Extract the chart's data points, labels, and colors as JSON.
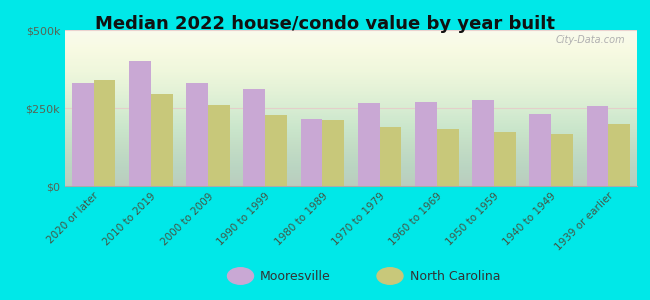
{
  "title": "Median 2022 house/condo value by year built",
  "categories": [
    "2020 or later",
    "2010 to 2019",
    "2000 to 2009",
    "1990 to 1999",
    "1980 to 1989",
    "1970 to 1979",
    "1960 to 1969",
    "1950 to 1959",
    "1940 to 1949",
    "1939 or earlier"
  ],
  "mooresville": [
    330000,
    400000,
    330000,
    310000,
    215000,
    265000,
    270000,
    275000,
    230000,
    255000
  ],
  "north_carolina": [
    340000,
    295000,
    260000,
    228000,
    213000,
    188000,
    183000,
    172000,
    168000,
    198000
  ],
  "mooresville_color": "#c9a8d4",
  "nc_color": "#c8c87a",
  "background_color": "#00e8e8",
  "plot_bg_top": "#f8faf0",
  "plot_bg_bottom": "#e8edc8",
  "title_fontsize": 13,
  "ylim": [
    0,
    500000
  ],
  "yticks": [
    0,
    250000,
    500000
  ],
  "ytick_labels": [
    "$0",
    "$250k",
    "$500k"
  ],
  "legend_mooresville": "Mooresville",
  "legend_nc": "North Carolina",
  "bar_width": 0.38,
  "watermark": "City-Data.com",
  "grid_color": "#e8c8c8",
  "grid_alpha": 0.8
}
